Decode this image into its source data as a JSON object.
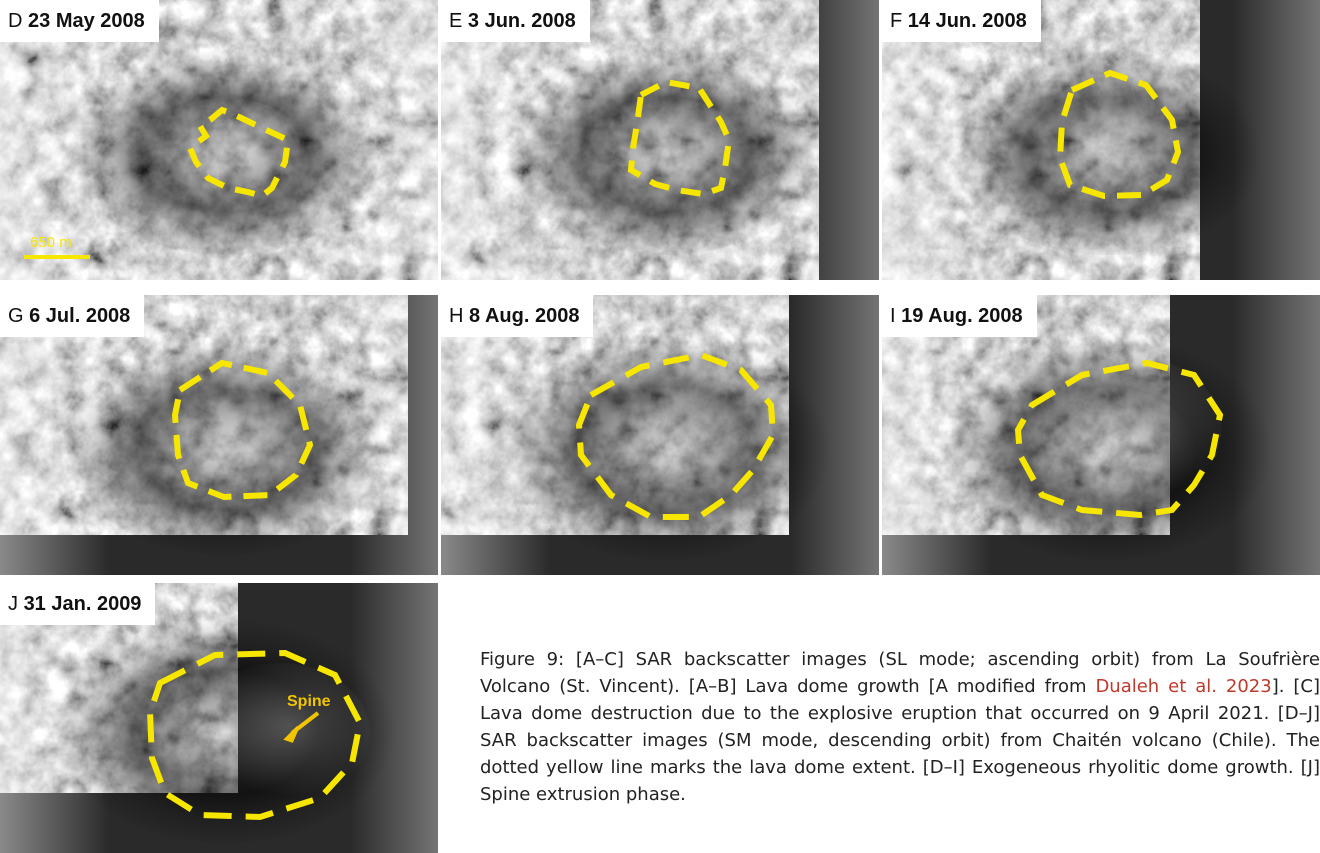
{
  "panels": [
    {
      "letter": "D",
      "date": "23 May 2008"
    },
    {
      "letter": "E",
      "date": "3 Jun. 2008"
    },
    {
      "letter": "F",
      "date": "14 Jun. 2008"
    },
    {
      "letter": "G",
      "date": "6 Jul. 2008"
    },
    {
      "letter": "H",
      "date": "8 Aug. 2008"
    },
    {
      "letter": "I",
      "date": "19 Aug. 2008"
    },
    {
      "letter": "J",
      "date": "31 Jan. 2009"
    }
  ],
  "scale_bar_label": "650 m",
  "spine_label": "Spine",
  "caption": {
    "part1": "Figure 9: [A–C] SAR backscatter images (SL mode; ascending orbit) from La Soufrière Volcano (St. Vincent). [A–B] Lava dome growth [A modified from ",
    "ref": "Dualeh et al. 2023",
    "part2": "]. [C] Lava dome destruction due to the explosive eruption that occurred on 9 April 2021. [D–J] SAR backscatter images (SM mode, descending orbit) from Chaitén volcano (Chile). The dotted yellow line marks the lava dome extent. [D–I] Exogeneous rhyolitic dome growth. [J] Spine extrusion phase."
  },
  "colors": {
    "outline": "#f7e700",
    "spine": "#f2c400",
    "reference": "#c0392b"
  }
}
